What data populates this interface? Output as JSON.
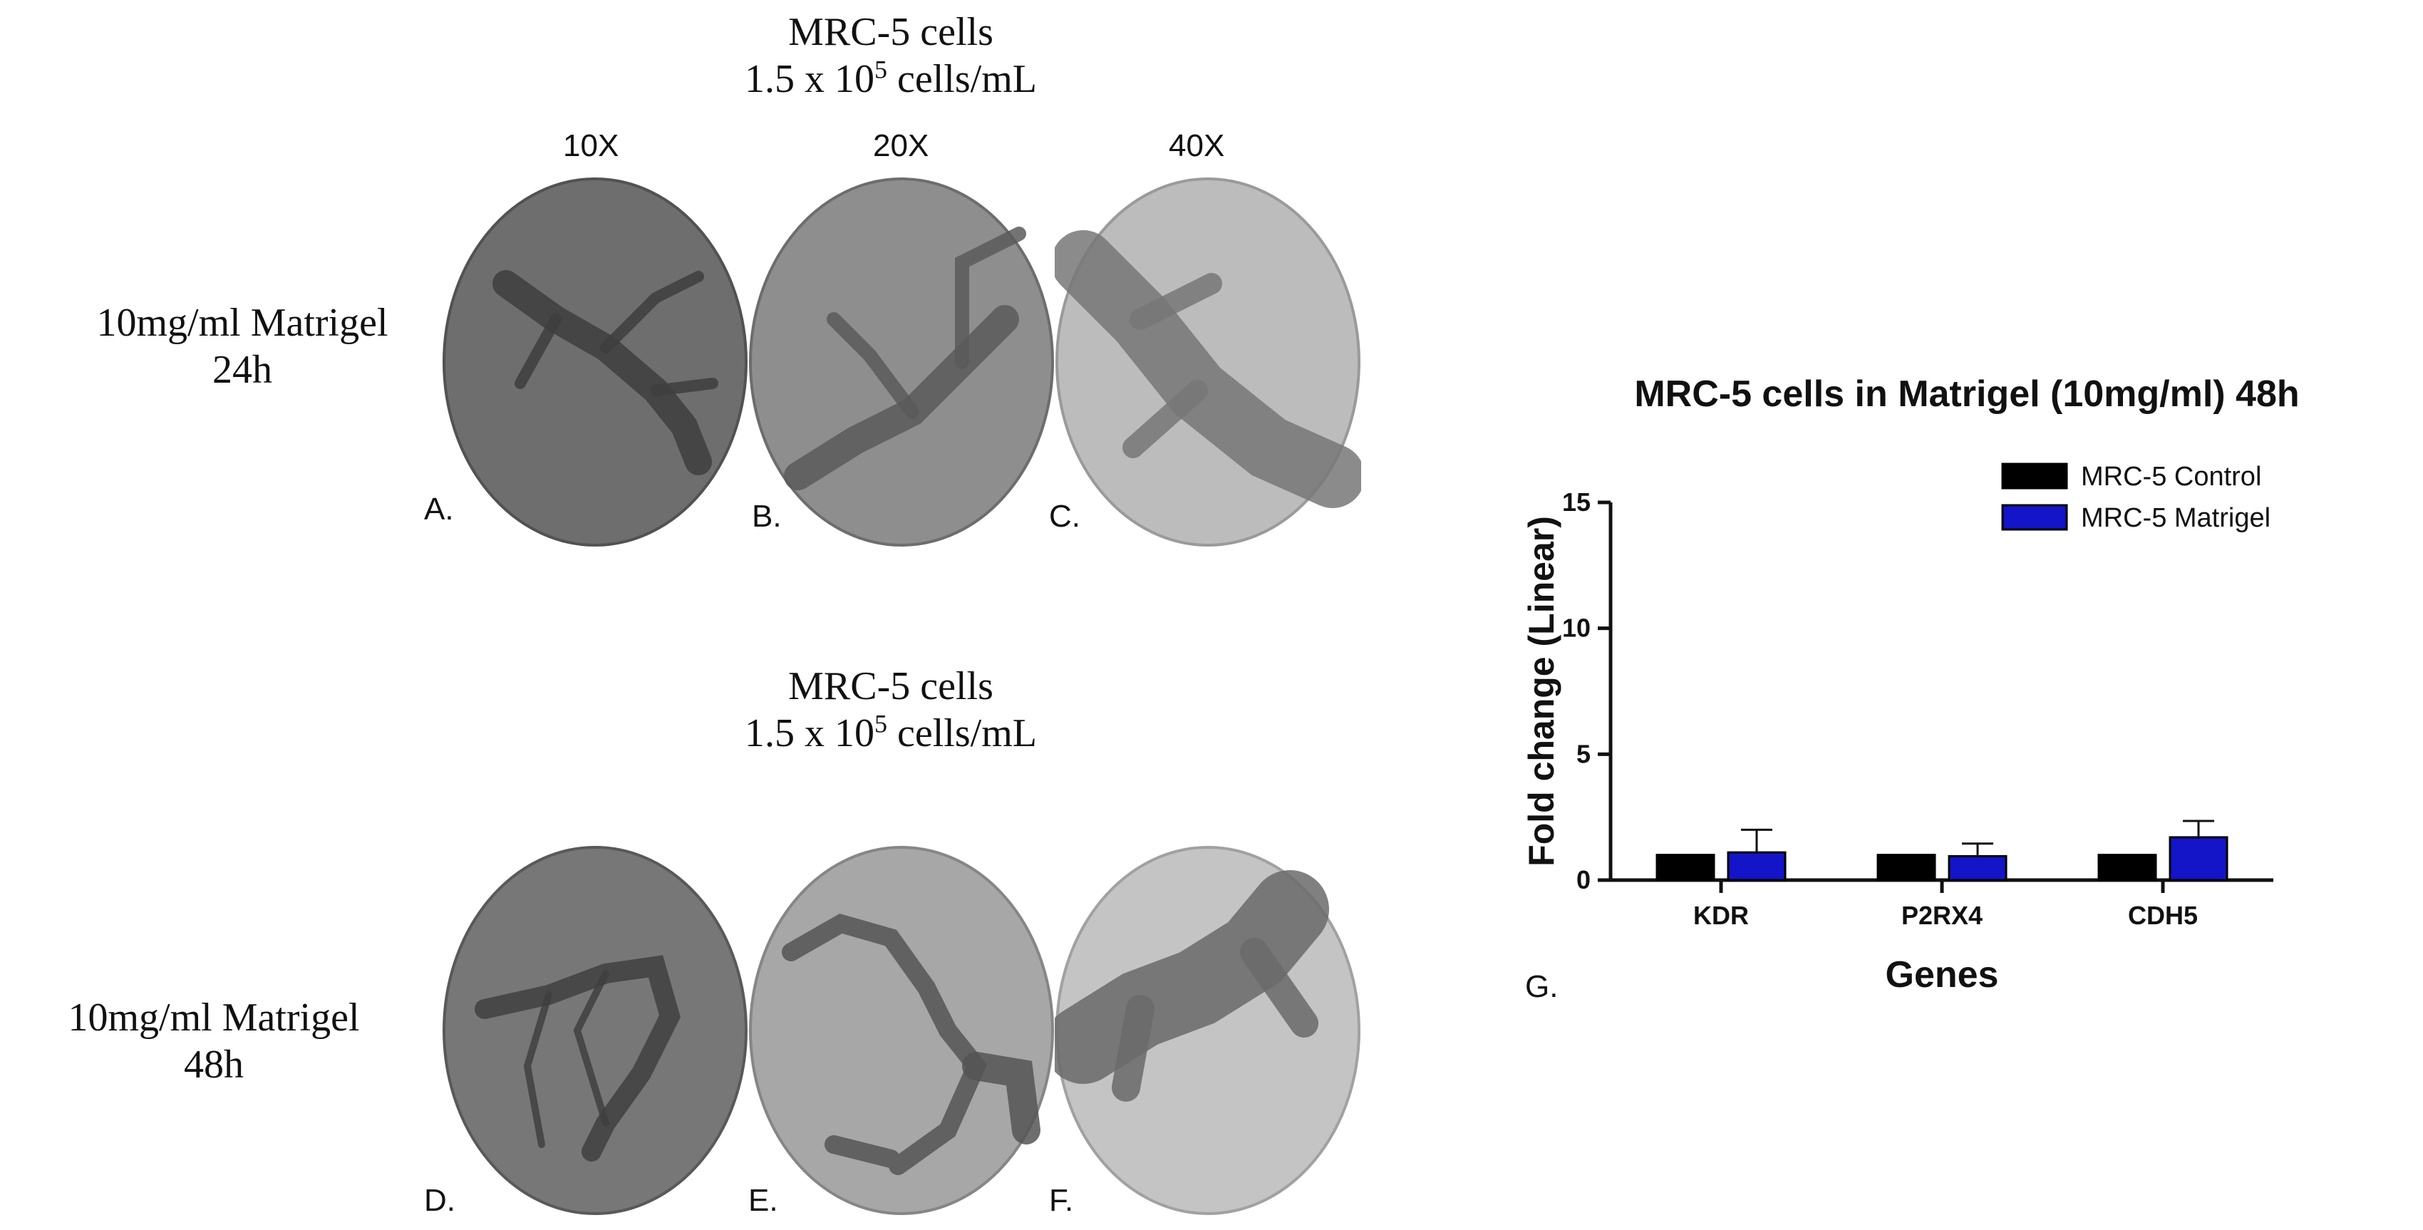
{
  "panel_headings": {
    "top": {
      "line1": "MRC-5 cells",
      "line2_prefix": "1.5 x 10",
      "line2_exp": "5",
      "line2_suffix": " cells/mL"
    },
    "bottom": {
      "line1": "MRC-5 cells",
      "line2_prefix": "1.5 x 10",
      "line2_exp": "5",
      "line2_suffix": " cells/mL"
    }
  },
  "magnifications": [
    "10X",
    "20X",
    "40X"
  ],
  "conditions": {
    "top": {
      "line1": "10mg/ml Matrigel",
      "line2": "24h"
    },
    "bottom": {
      "line1": "10mg/ml Matrigel",
      "line2": "48h"
    }
  },
  "panel_labels": [
    "A.",
    "B.",
    "C.",
    "D.",
    "E.",
    "F.",
    "G."
  ],
  "micrograph_styles": [
    {
      "bg": "#6e6e6e",
      "edge": "#525252",
      "stain": "#3e3e3e"
    },
    {
      "bg": "#8e8e8e",
      "edge": "#6d6d6d",
      "stain": "#5b5b5b"
    },
    {
      "bg": "#bcbcbc",
      "edge": "#9a9a9a",
      "stain": "#777777"
    },
    {
      "bg": "#777777",
      "edge": "#595959",
      "stain": "#404040"
    },
    {
      "bg": "#a7a7a7",
      "edge": "#868686",
      "stain": "#555555"
    },
    {
      "bg": "#c4c4c4",
      "edge": "#a1a1a1",
      "stain": "#6a6a6a"
    }
  ],
  "chart_data": {
    "type": "bar",
    "title": "MRC-5 cells in Matrigel (10mg/ml) 48h",
    "xlabel": "Genes",
    "ylabel": "Fold change (Linear)",
    "categories": [
      "KDR",
      "P2RX4",
      "CDH5"
    ],
    "ylim": [
      0,
      15
    ],
    "yticks": [
      0,
      5,
      10,
      15
    ],
    "legend_position": "top-right",
    "series": [
      {
        "name": "MRC-5 Control",
        "color": "#000000",
        "values": [
          1.0,
          1.0,
          1.0
        ],
        "errors": [
          0,
          0,
          0
        ]
      },
      {
        "name": "MRC-5 Matrigel",
        "color": "#1414c8",
        "values": [
          1.1,
          0.95,
          1.7
        ],
        "errors": [
          0.9,
          0.5,
          0.65
        ]
      }
    ]
  }
}
